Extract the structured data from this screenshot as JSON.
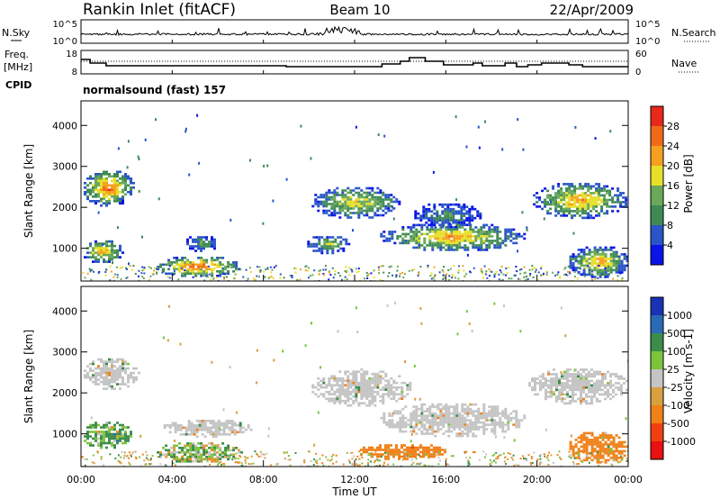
{
  "header": {
    "station": "Rankin Inlet (fitACF)",
    "beam": "Beam 10",
    "date": "22/Apr/2009"
  },
  "sky_panel": {
    "left_label": "N.Sky",
    "left_ticks": [
      "10^5",
      "10^0"
    ],
    "right_label": "N.Search",
    "right_ticks": [
      "10^5",
      "10^0"
    ]
  },
  "freq_panel": {
    "left_label_1": "Freq.",
    "left_label_2": "[MHz]",
    "cpid_label": "CPID",
    "left_ticks": [
      "18",
      "8"
    ],
    "right_label": "Nave",
    "right_ticks": [
      "60",
      "0"
    ]
  },
  "cpid_text": "normalsound (fast) 157",
  "colors": {
    "power": [
      "#0a14e6",
      "#2a55c8",
      "#3f8a54",
      "#6aa85a",
      "#e6e028",
      "#f5a020",
      "#ef6a18",
      "#e8281a"
    ],
    "velocity": [
      "#1a32b4",
      "#2a6ab4",
      "#3c8c4a",
      "#7cc43c",
      "#c4c4c4",
      "#d8a040",
      "#f08018",
      "#f04010",
      "#e81010"
    ]
  },
  "chart_data": [
    {
      "type": "heatmap",
      "title": "Power",
      "ylabel": "Slant Range [km]",
      "xlabel": "Time UT",
      "xlim": [
        0,
        24
      ],
      "ylim": [
        200,
        4600
      ],
      "x_ticks": [
        "00:00",
        "04:00",
        "08:00",
        "12:00",
        "16:00",
        "20:00",
        "00:00"
      ],
      "y_ticks": [
        "1000",
        "2000",
        "3000",
        "4000"
      ],
      "colorbar": {
        "label": "Power [dB]",
        "ticks": [
          "4",
          "8",
          "12",
          "16",
          "20",
          "24",
          "28"
        ]
      },
      "regions": [
        {
          "t0": 0.0,
          "t1": 2.3,
          "r0": 2050,
          "r1": 2950,
          "peak_db": 28
        },
        {
          "t0": 0.0,
          "t1": 1.8,
          "r0": 650,
          "r1": 1250,
          "peak_db": 24
        },
        {
          "t0": 3.2,
          "t1": 7.0,
          "r0": 300,
          "r1": 850,
          "peak_db": 28
        },
        {
          "t0": 4.5,
          "t1": 6.0,
          "r0": 950,
          "r1": 1350,
          "peak_db": 14
        },
        {
          "t0": 10.0,
          "t1": 14.0,
          "r0": 1750,
          "r1": 2550,
          "peak_db": 20
        },
        {
          "t0": 9.8,
          "t1": 11.8,
          "r0": 900,
          "r1": 1350,
          "peak_db": 16
        },
        {
          "t0": 13.0,
          "t1": 19.5,
          "r0": 950,
          "r1": 1650,
          "peak_db": 24
        },
        {
          "t0": 14.5,
          "t1": 17.5,
          "r0": 1500,
          "r1": 2150,
          "peak_db": 12
        },
        {
          "t0": 19.7,
          "t1": 24.0,
          "r0": 1750,
          "r1": 2650,
          "peak_db": 24
        },
        {
          "t0": 21.3,
          "t1": 24.0,
          "r0": 300,
          "r1": 1100,
          "peak_db": 24
        }
      ]
    },
    {
      "type": "heatmap",
      "title": "Velocity",
      "ylabel": "Slant Range [km]",
      "xlabel": "Time UT",
      "xlim": [
        0,
        24
      ],
      "ylim": [
        200,
        4600
      ],
      "x_ticks": [
        "00:00",
        "04:00",
        "08:00",
        "12:00",
        "16:00",
        "20:00",
        "00:00"
      ],
      "y_ticks": [
        "1000",
        "2000",
        "3000",
        "4000"
      ],
      "colorbar": {
        "label": "Velocity [m s-1]",
        "ticks": [
          "1000",
          "500",
          "100",
          "25",
          "-25",
          "-100",
          "-500",
          "-1000"
        ]
      },
      "regions": [
        {
          "t0": 0.0,
          "t1": 2.5,
          "r0": 2100,
          "r1": 2900,
          "velocity": 0
        },
        {
          "t0": 0.0,
          "t1": 2.2,
          "r0": 650,
          "r1": 1350,
          "velocity": 150
        },
        {
          "t0": 3.2,
          "t1": 7.0,
          "r0": 300,
          "r1": 850,
          "velocity": 60
        },
        {
          "t0": 3.5,
          "t1": 7.5,
          "r0": 950,
          "r1": 1400,
          "velocity": 0
        },
        {
          "t0": 10.0,
          "t1": 14.5,
          "r0": 1700,
          "r1": 2600,
          "velocity": 0
        },
        {
          "t0": 13.0,
          "t1": 19.5,
          "r0": 950,
          "r1": 1800,
          "velocity": 0
        },
        {
          "t0": 12.0,
          "t1": 16.0,
          "r0": 400,
          "r1": 800,
          "velocity": -300
        },
        {
          "t0": 19.5,
          "t1": 24.0,
          "r0": 1750,
          "r1": 2650,
          "velocity": 0
        },
        {
          "t0": 21.3,
          "t1": 24.0,
          "r0": 300,
          "r1": 1100,
          "velocity": -300
        }
      ]
    }
  ]
}
